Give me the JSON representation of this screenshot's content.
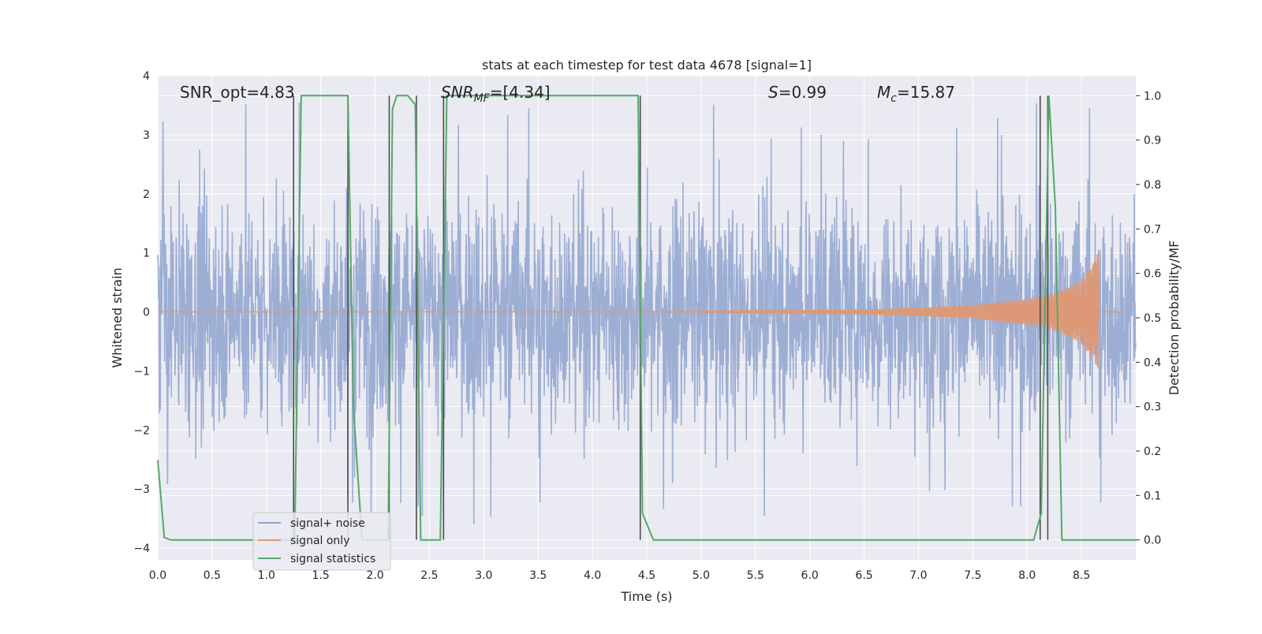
{
  "chart_data": {
    "type": "line",
    "title": "stats at each timestep for test data 4678 [signal=1]",
    "xlabel": "Time (s)",
    "ylabel": "Whitened strain",
    "y2label": "Detection probability/MF",
    "xlim": [
      0.0,
      9.0
    ],
    "ylim": [
      -4.2,
      4.0
    ],
    "y2lim": [
      -0.045,
      1.045
    ],
    "xticks": [
      0.0,
      0.5,
      1.0,
      1.5,
      2.0,
      2.5,
      3.0,
      3.5,
      4.0,
      4.5,
      5.0,
      5.5,
      6.0,
      6.5,
      7.0,
      7.5,
      8.0,
      8.5
    ],
    "xtick_labels": [
      "0.0",
      "0.5",
      "1.0",
      "1.5",
      "2.0",
      "2.5",
      "3.0",
      "3.5",
      "4.0",
      "4.5",
      "5.0",
      "5.5",
      "6.0",
      "6.5",
      "7.0",
      "7.5",
      "8.0",
      "8.5"
    ],
    "yticks": [
      4,
      3,
      2,
      1,
      0,
      -1,
      -2,
      -3,
      -4
    ],
    "ytick_labels": [
      "4",
      "3",
      "2",
      "1",
      "0",
      "−1",
      "−2",
      "−3",
      "−4"
    ],
    "y2ticks": [
      1.0,
      0.9,
      0.8,
      0.7,
      0.6,
      0.5,
      0.4,
      0.3,
      0.2,
      0.1,
      0.0
    ],
    "y2tick_labels": [
      "1.0",
      "0.9",
      "0.8",
      "0.7",
      "0.6",
      "0.5",
      "0.4",
      "0.3",
      "0.2",
      "0.1",
      "0.0"
    ],
    "grid": true,
    "legend_position": "lower-left",
    "annotations": {
      "snr_opt": "SNR_opt=4.83",
      "snr_mf_base": "SNR",
      "snr_mf_sub": "MF",
      "snr_mf_rest": "=[4.34]",
      "s_var": "S",
      "s_rest": "=0.99",
      "mc_base": "M",
      "mc_sub": "c",
      "mc_rest": "=15.87"
    },
    "series": [
      {
        "name": "signal+ noise",
        "color": "#8fa3cf",
        "axis": "left",
        "description_values": {
          "typical_peak_positive": 3.0,
          "typical_peak_negative": -3.0,
          "max": 3.6,
          "min": -4.0
        }
      },
      {
        "name": "signal only",
        "color": "#dd9977",
        "axis": "left",
        "x": [
          0.0,
          4.5,
          5.5,
          6.5,
          7.0,
          7.5,
          8.0,
          8.3,
          8.5,
          8.62,
          8.66
        ],
        "amplitude": [
          0.0,
          0.0,
          0.02,
          0.04,
          0.07,
          0.12,
          0.22,
          0.35,
          0.55,
          0.85,
          1.05
        ]
      },
      {
        "name": "signal statistics",
        "color": "#55a868",
        "axis": "right",
        "x": [
          0.0,
          0.06,
          0.12,
          1.26,
          1.32,
          1.75,
          1.8,
          1.88,
          2.12,
          2.16,
          2.2,
          2.3,
          2.37,
          2.42,
          2.6,
          2.66,
          2.74,
          4.42,
          4.46,
          4.56,
          8.06,
          8.13,
          8.2,
          8.26,
          8.32,
          8.5,
          9.0
        ],
        "y": [
          0.18,
          0.005,
          0.0,
          0.0,
          1.0,
          1.0,
          0.3,
          0.0,
          0.0,
          0.97,
          1.0,
          1.0,
          0.98,
          0.0,
          0.0,
          1.0,
          1.0,
          1.0,
          0.06,
          0.0,
          0.0,
          0.06,
          1.0,
          0.75,
          0.0,
          0.0,
          0.0
        ]
      }
    ],
    "vertical_markers": [
      1.25,
      1.75,
      2.13,
      2.38,
      2.63,
      4.44,
      8.12,
      8.19
    ]
  }
}
